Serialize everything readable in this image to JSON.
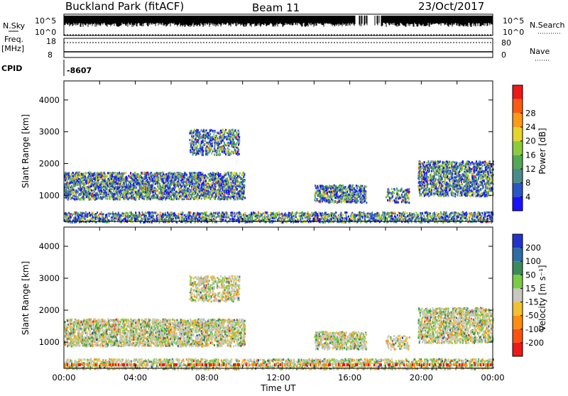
{
  "header": {
    "station": "Buckland Park (fitACF)",
    "beam": "Beam 11",
    "date": "23/Oct/2017"
  },
  "noise_panel": {
    "left_label": "N.Sky",
    "right_label": "N.Search",
    "ticks_left": [
      "10^5",
      "10^0"
    ],
    "ticks_right": [
      "10^5",
      "10^0"
    ]
  },
  "freq_panel": {
    "label_line1": "Freq.",
    "label_line2": "[MHz]",
    "ticks_left": [
      "18",
      "8"
    ],
    "right_label": "Nave",
    "ticks_right": [
      "80",
      "0"
    ]
  },
  "cpid_panel": {
    "label": "CPID",
    "value": "-8607"
  },
  "chart_data": [
    {
      "type": "heatmap",
      "title": "",
      "ylabel": "Slant Range [km]",
      "xlabel": "",
      "xlim_hours": [
        0,
        24
      ],
      "ylim": [
        180,
        4600
      ],
      "yticks": [
        "1000",
        "2000",
        "3000",
        "4000"
      ],
      "colorbar": {
        "label": "Power [dB]",
        "range": [
          0,
          32
        ],
        "ticks": [
          "4",
          "8",
          "12",
          "16",
          "20",
          "24",
          "28"
        ],
        "colors": [
          "#1a12ff",
          "#2856c4",
          "#4a8a8a",
          "#53a853",
          "#8ccc3c",
          "#e8d428",
          "#ff9a18",
          "#ff5a10",
          "#ee1818"
        ]
      },
      "regions": [
        {
          "t": [
            0.0,
            10.1
          ],
          "r": [
            900,
            1750
          ],
          "level": 0.55
        },
        {
          "t": [
            7.0,
            9.8
          ],
          "r": [
            2300,
            3100
          ],
          "level": 0.4
        },
        {
          "t": [
            14.0,
            16.9
          ],
          "r": [
            800,
            1350
          ],
          "level": 0.55
        },
        {
          "t": [
            18.0,
            19.3
          ],
          "r": [
            800,
            1250
          ],
          "level": 0.3
        },
        {
          "t": [
            19.8,
            24.0
          ],
          "r": [
            1000,
            2100
          ],
          "level": 0.5
        },
        {
          "t": [
            0.0,
            24.0
          ],
          "r": [
            180,
            500
          ],
          "level": 0.45
        }
      ]
    },
    {
      "type": "heatmap",
      "title": "",
      "ylabel": "Slant Range [km]",
      "xlabel": "Time UT",
      "xlim_hours": [
        0,
        24
      ],
      "xticks": [
        "00:00",
        "04:00",
        "08:00",
        "12:00",
        "16:00",
        "20:00",
        "00:00"
      ],
      "ylim": [
        180,
        4600
      ],
      "yticks": [
        "1000",
        "2000",
        "3000",
        "4000"
      ],
      "colorbar": {
        "label": "Velocity [m s⁻¹]",
        "range": [
          -250,
          250
        ],
        "ticks": [
          "200",
          "100",
          "50",
          "15",
          "-15",
          "-50",
          "-100",
          "-200"
        ],
        "colors": [
          "#2233cc",
          "#2e6ca8",
          "#3a8a5a",
          "#7acc44",
          "#c8c8c0",
          "#f2c030",
          "#ff8c10",
          "#ff5010",
          "#ee1818"
        ]
      },
      "regions": [
        {
          "t": [
            0.0,
            10.1
          ],
          "r": [
            900,
            1750
          ],
          "level": 0.55
        },
        {
          "t": [
            7.0,
            9.8
          ],
          "r": [
            2300,
            3100
          ],
          "level": 0.4
        },
        {
          "t": [
            14.0,
            16.9
          ],
          "r": [
            800,
            1350
          ],
          "level": 0.55
        },
        {
          "t": [
            18.0,
            19.3
          ],
          "r": [
            800,
            1250
          ],
          "level": 0.3
        },
        {
          "t": [
            19.8,
            24.0
          ],
          "r": [
            1000,
            2100
          ],
          "level": 0.5
        },
        {
          "t": [
            0.0,
            24.0
          ],
          "r": [
            180,
            500
          ],
          "level": 0.45
        }
      ]
    }
  ]
}
